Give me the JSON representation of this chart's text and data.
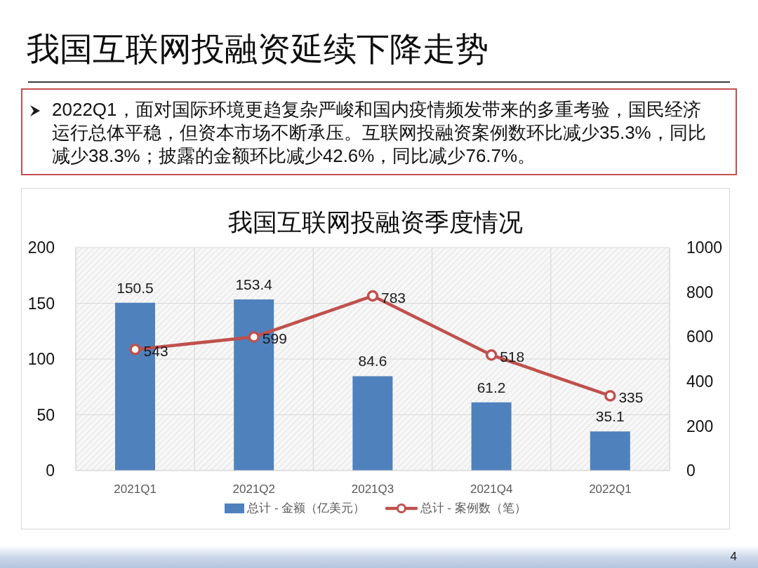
{
  "chart_data": {
    "type": "bar",
    "title": "我国互联网投融资延续下降走势",
    "subtitle": "我国互联网投融资季度情况",
    "categories": [
      "2021Q1",
      "2021Q2",
      "2021Q3",
      "2021Q4",
      "2022Q1"
    ],
    "series": [
      {
        "name": "总计 - 金额（亿美元）",
        "color": "#4f81bd",
        "values": [
          150.5,
          153.4,
          84.6,
          61.2,
          35.1
        ]
      },
      {
        "name": "总计 - 案例数（笔）",
        "type": "line",
        "axis": "y2",
        "color": "#c0504d",
        "values": [
          543,
          599,
          783,
          518,
          335
        ]
      }
    ],
    "ylim": [
      0,
      200
    ],
    "yticks": [
      0,
      50,
      100,
      150,
      200
    ],
    "y2lim": [
      0,
      1000
    ],
    "y2ticks": [
      0,
      200,
      400,
      600,
      800,
      1000
    ],
    "grid": true,
    "legend": "bottom",
    "data_labels": true,
    "marker": "circle",
    "line_style": "solid",
    "annotations": [
      "2022Q1，面对国际环境更趋复杂严峻和国内疫情频发带来的多重考验，国民经济运行总体平稳，但资本市场不断承压。互联网投融资案例数环比减少35.3%，同比减少38.3%；披露的金额环比减少42.6%，同比减少76.7%。",
      "4"
    ]
  }
}
